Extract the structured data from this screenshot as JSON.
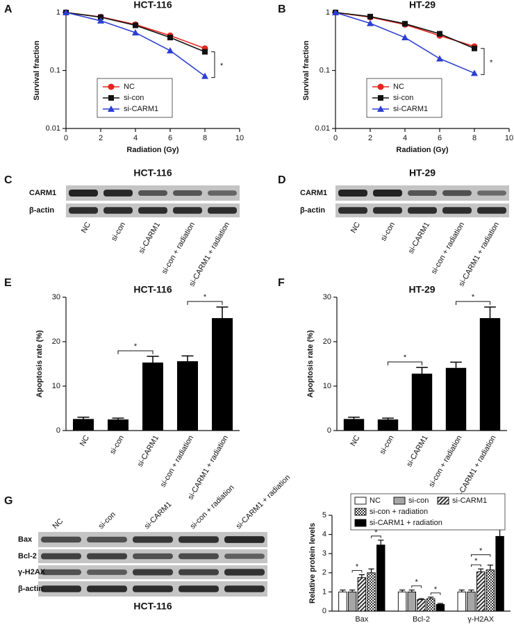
{
  "panel_labels": [
    "A",
    "B",
    "C",
    "D",
    "E",
    "F",
    "G"
  ],
  "chart_data": [
    {
      "type": "line",
      "title": "HCT-116",
      "x_label": "Radiation (Gy)",
      "y_label": "Survival fraction",
      "x": [
        0,
        2,
        4,
        6,
        8
      ],
      "xlim": [
        0,
        10
      ],
      "xticks": [
        0,
        2,
        4,
        6,
        8,
        10
      ],
      "ylim": [
        0.01,
        1
      ],
      "yticks": [
        0.01,
        0.1,
        1
      ],
      "log_y": true,
      "series": [
        {
          "name": "NC",
          "color": "#e8241c",
          "marker": "circle",
          "values": [
            1,
            0.84,
            0.62,
            0.4,
            0.24
          ]
        },
        {
          "name": "si-con",
          "color": "#111111",
          "marker": "square",
          "values": [
            1,
            0.83,
            0.6,
            0.37,
            0.21
          ]
        },
        {
          "name": "si-CARM1",
          "color": "#2b3fd0",
          "marker": "triangle",
          "values": [
            1,
            0.72,
            0.45,
            0.22,
            0.08
          ]
        }
      ],
      "annotations": [
        "*"
      ]
    },
    {
      "type": "line",
      "title": "HT-29",
      "x_label": "Radiation (Gy)",
      "y_label": "Survival fraction",
      "x": [
        0,
        2,
        4,
        6,
        8
      ],
      "xlim": [
        0,
        10
      ],
      "xticks": [
        0,
        2,
        4,
        6,
        8,
        10
      ],
      "ylim": [
        0.01,
        1
      ],
      "yticks": [
        0.01,
        0.1,
        1
      ],
      "log_y": true,
      "series": [
        {
          "name": "NC",
          "color": "#e8241c",
          "marker": "circle",
          "values": [
            1,
            0.83,
            0.62,
            0.4,
            0.26
          ]
        },
        {
          "name": "si-con",
          "color": "#111111",
          "marker": "square",
          "values": [
            1,
            0.85,
            0.64,
            0.43,
            0.24
          ]
        },
        {
          "name": "si-CARM1",
          "color": "#2b3fd0",
          "marker": "triangle",
          "values": [
            1,
            0.65,
            0.37,
            0.16,
            0.09
          ]
        }
      ],
      "annotations": [
        "*"
      ]
    },
    {
      "type": "bar",
      "title": "HCT-116",
      "y_label": "Apoptosis rate (%)",
      "categories": [
        "NC",
        "si-con",
        "si-CARM1",
        "si-con + radiation",
        "si-CARM1 + radiation"
      ],
      "values": [
        2.6,
        2.5,
        15.3,
        15.6,
        25.3
      ],
      "errors": [
        0.4,
        0.3,
        1.4,
        1.2,
        2.5
      ],
      "color": "#000000",
      "ylim": [
        0,
        30
      ],
      "yticks": [
        0,
        10,
        20,
        30
      ],
      "annotations": [
        "*",
        "*"
      ]
    },
    {
      "type": "bar",
      "title": "HT-29",
      "y_label": "Apoptosis rate (%)",
      "categories": [
        "NC",
        "si-con",
        "si-CARM1",
        "si-con + radiation",
        "si-CARM1 + radiation"
      ],
      "values": [
        2.6,
        2.5,
        12.8,
        14.1,
        25.3
      ],
      "errors": [
        0.4,
        0.3,
        1.4,
        1.3,
        2.5
      ],
      "color": "#000000",
      "ylim": [
        0,
        30
      ],
      "yticks": [
        0,
        10,
        20,
        30
      ],
      "annotations": [
        "*",
        "*"
      ]
    },
    {
      "type": "grouped_bar",
      "y_label": "Relative protein levels",
      "categories": [
        "Bax",
        "Bcl-2",
        "γ-H2AX"
      ],
      "series": [
        {
          "name": "NC",
          "color": "#ffffff",
          "values": [
            1,
            1,
            1
          ],
          "errors": [
            0.1,
            0.1,
            0.1
          ]
        },
        {
          "name": "si-con",
          "color": "#a6a6a6",
          "values": [
            1,
            1,
            1
          ],
          "errors": [
            0.1,
            0.1,
            0.1
          ]
        },
        {
          "name": "si-CARM1",
          "color": "#555555",
          "pattern": "hatch",
          "values": [
            1.75,
            0.6,
            2.05
          ],
          "errors": [
            0.15,
            0.05,
            0.15
          ]
        },
        {
          "name": "si-con + radiation",
          "color": "#777777",
          "pattern": "checker",
          "values": [
            2,
            0.65,
            2.15
          ],
          "errors": [
            0.2,
            0.08,
            0.25
          ]
        },
        {
          "name": "si-CARM1 + radiation",
          "color": "#000000",
          "values": [
            3.45,
            0.35,
            3.9
          ],
          "errors": [
            0.25,
            0.05,
            0.35
          ]
        }
      ],
      "ylim": [
        0,
        5
      ],
      "yticks": [
        0,
        1,
        2,
        3,
        4,
        5
      ],
      "annotations": [
        "*",
        "*",
        "*",
        "*",
        "*",
        "*",
        "*"
      ]
    }
  ],
  "blots": [
    {
      "title": "HCT-116",
      "rows": [
        "CARM1",
        "β-actin"
      ],
      "lanes": [
        "NC",
        "si-con",
        "si-CARM1",
        "si-con + radiation",
        "si-CARM1 + radiation"
      ]
    },
    {
      "title": "HT-29",
      "rows": [
        "CARM1",
        "β-actin"
      ],
      "lanes": [
        "NC",
        "si-con",
        "si-CARM1",
        "si-con + radiation",
        "si-CARM1 + radiation"
      ]
    },
    {
      "title": "HCT-116",
      "rows": [
        "Bax",
        "Bcl-2",
        "γ-H2AX",
        "β-actin"
      ],
      "lanes": [
        "NC",
        "si-con",
        "si-CARM1",
        "si-con + radiation",
        "si-CARM1 + radiation"
      ]
    }
  ]
}
